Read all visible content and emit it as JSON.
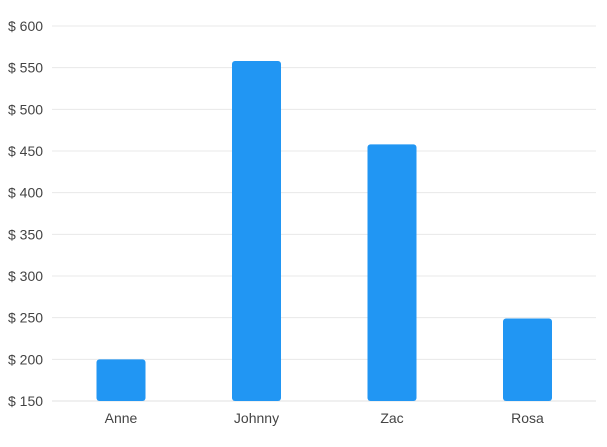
{
  "chart_data": {
    "type": "bar",
    "categories": [
      "Anne",
      "Johnny",
      "Zac",
      "Rosa"
    ],
    "values": [
      200,
      558,
      458,
      249
    ],
    "y_tick_labels": [
      "$ 150",
      "$ 200",
      "$ 250",
      "$ 300",
      "$ 350",
      "$ 400",
      "$ 450",
      "$ 500",
      "$ 550",
      "$ 600"
    ],
    "y_ticks": [
      150,
      200,
      250,
      300,
      350,
      400,
      450,
      500,
      550,
      600
    ],
    "ylim": [
      150,
      600
    ],
    "title": "",
    "xlabel": "",
    "ylabel": "",
    "grid": "horizontal",
    "legend": "none",
    "colors": {
      "bar": "#2196F3",
      "grid": "#e8e8e8",
      "tick_text": "#444444",
      "axis": "#e0e0e0"
    }
  }
}
